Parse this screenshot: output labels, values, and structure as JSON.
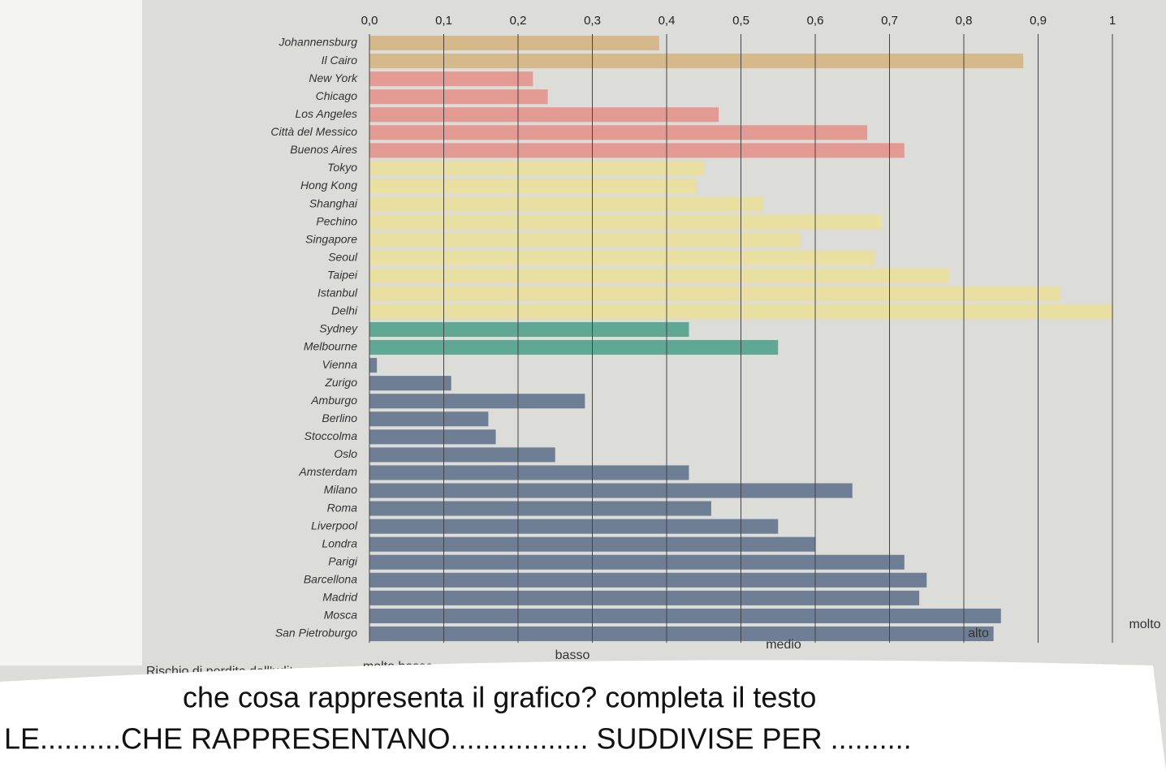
{
  "chart_data": {
    "type": "barh",
    "categories": [
      "Johannensburg",
      "Il Cairo",
      "New York",
      "Chicago",
      "Los Angeles",
      "Città del Messico",
      "Buenos Aires",
      "Tokyo",
      "Hong Kong",
      "Shanghai",
      "Pechino",
      "Singapore",
      "Seoul",
      "Taipei",
      "Istanbul",
      "Delhi",
      "Sydney",
      "Melbourne",
      "Vienna",
      "Zurigo",
      "Amburgo",
      "Berlino",
      "Stoccolma",
      "Oslo",
      "Amsterdam",
      "Milano",
      "Roma",
      "Liverpool",
      "Londra",
      "Parigi",
      "Barcellona",
      "Madrid",
      "Mosca",
      "San Pietroburgo"
    ],
    "values": [
      0.39,
      0.88,
      0.22,
      0.24,
      0.47,
      0.67,
      0.72,
      0.45,
      0.44,
      0.53,
      0.69,
      0.58,
      0.68,
      0.78,
      0.93,
      1.0,
      0.43,
      0.55,
      0.01,
      0.11,
      0.29,
      0.16,
      0.17,
      0.25,
      0.43,
      0.65,
      0.46,
      0.55,
      0.6,
      0.72,
      0.75,
      0.74,
      0.85,
      0.84
    ],
    "colors": [
      "#d6b98a",
      "#d6b98a",
      "#e39a92",
      "#e39a92",
      "#e39a92",
      "#e39a92",
      "#e39a92",
      "#e8dfa0",
      "#e8dfa0",
      "#e8dfa0",
      "#e8dfa0",
      "#e8dfa0",
      "#e8dfa0",
      "#e8dfa0",
      "#e8dfa0",
      "#e8dfa0",
      "#5fa893",
      "#5fa893",
      "#6e7f95",
      "#6e7f95",
      "#6e7f95",
      "#6e7f95",
      "#6e7f95",
      "#6e7f95",
      "#6e7f95",
      "#6e7f95",
      "#6e7f95",
      "#6e7f95",
      "#6e7f95",
      "#6e7f95",
      "#6e7f95",
      "#6e7f95",
      "#6e7f95",
      "#6e7f95"
    ],
    "xlim": [
      0,
      1
    ],
    "xticks": [
      {
        "value": 0,
        "label": "0,0"
      },
      {
        "value": 0.1,
        "label": "0,1"
      },
      {
        "value": 0.2,
        "label": "0,2"
      },
      {
        "value": 0.3,
        "label": "0,3"
      },
      {
        "value": 0.4,
        "label": "0,4"
      },
      {
        "value": 0.5,
        "label": "0,5"
      },
      {
        "value": 0.6,
        "label": "0,6"
      },
      {
        "value": 0.7,
        "label": "0,7"
      },
      {
        "value": 0.8,
        "label": "0,8"
      },
      {
        "value": 0.9,
        "label": "0,9"
      },
      1
    ],
    "grid": true,
    "legend_title": "Rischio di perdita dell'udito:",
    "legend_levels": [
      "molto basso",
      "basso",
      "medio",
      "alto",
      "molto"
    ]
  },
  "overlay": {
    "question": "che cosa rappresenta il grafico? completa il testo",
    "exercise": "LE..........CHE RAPPRESENTANO................. SUDDIVISE PER .........."
  }
}
